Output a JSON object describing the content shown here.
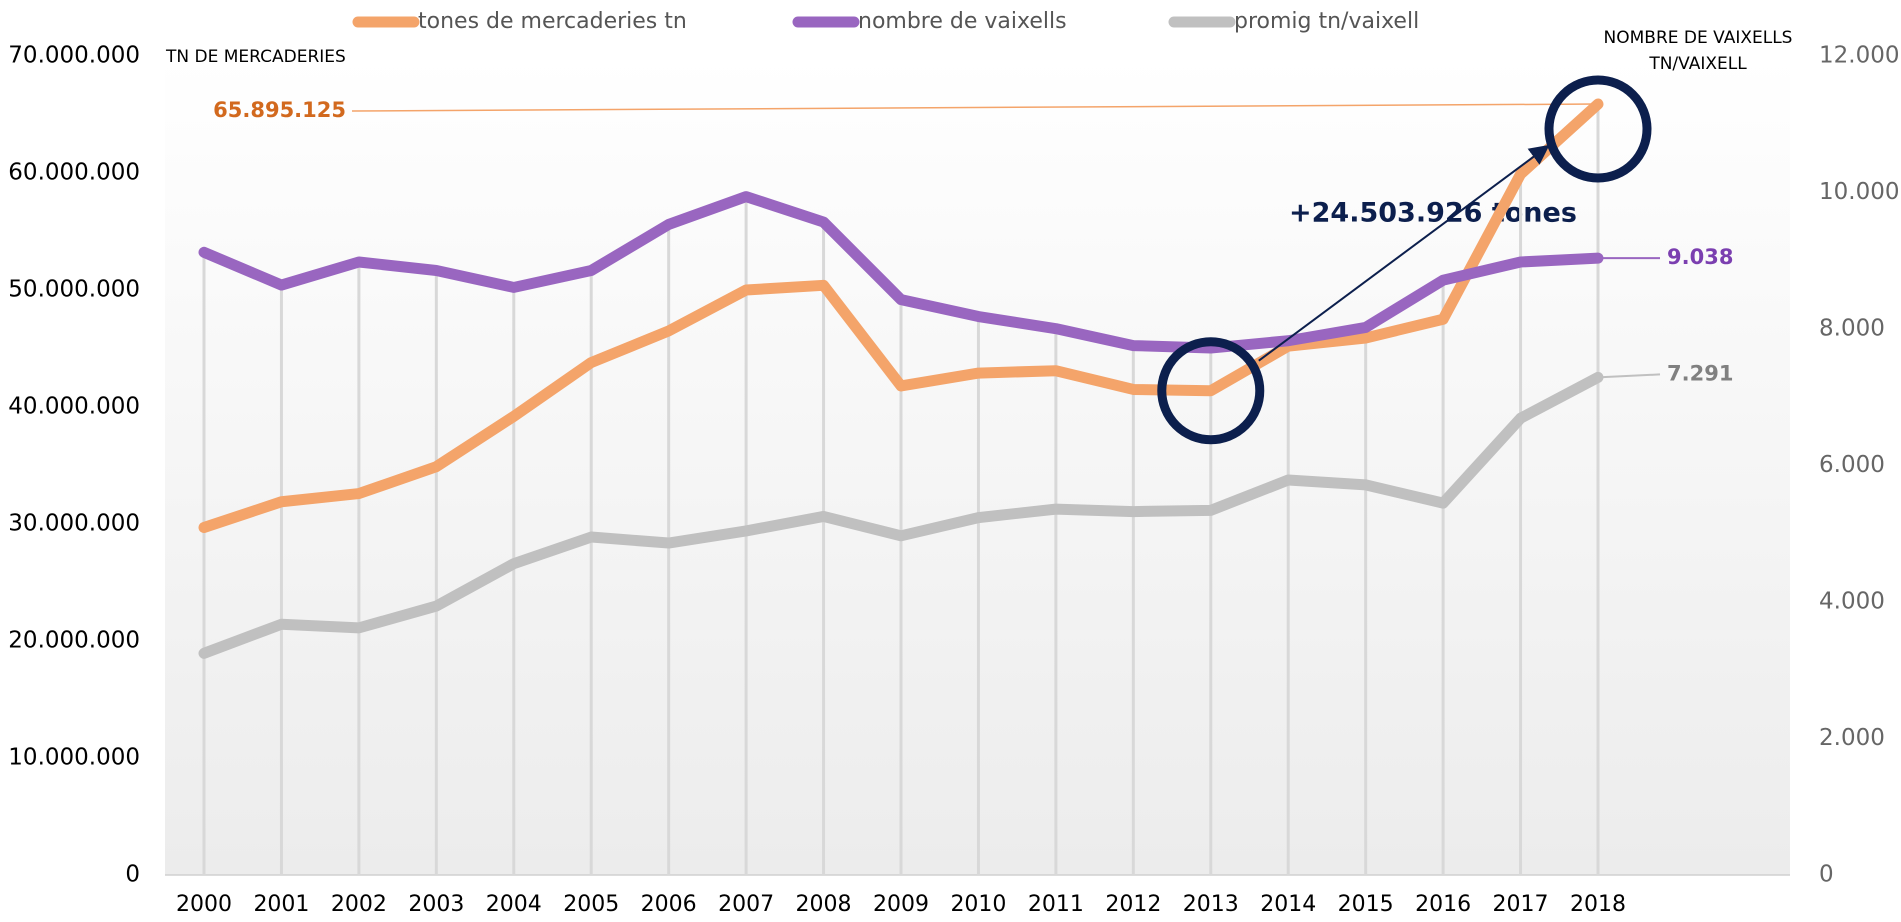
{
  "chart_data": {
    "type": "line",
    "legend": "top",
    "grid": false,
    "annotations": {
      "left_axis_title": "TN DE MERCADERIES",
      "right_axis_title_1": "NOMBRE DE VAIXELLS",
      "right_axis_title_2": "TN/VAIXELL",
      "growth": "+24.503.926 tones"
    },
    "categories": [
      "2000",
      "2001",
      "2002",
      "2003",
      "2004",
      "2005",
      "2006",
      "2007",
      "2008",
      "2009",
      "2010",
      "2011",
      "2012",
      "2013",
      "2014",
      "2015",
      "2016",
      "2017",
      "2018"
    ],
    "ylim": [
      0,
      70000000
    ],
    "yticks": [
      0,
      {
        "value": 10000000,
        "label": "10.000.000"
      },
      {
        "value": 20000000,
        "label": "20.000.000"
      },
      {
        "value": 30000000,
        "label": "30.000.000"
      },
      {
        "value": 40000000,
        "label": "40.000.000"
      },
      {
        "value": 50000000,
        "label": "50.000.000"
      },
      {
        "value": 60000000,
        "label": "60.000.000"
      },
      {
        "value": 70000000,
        "label": "70.000.000"
      }
    ],
    "y2lim": [
      0,
      12000
    ],
    "y2ticks": [
      0,
      {
        "value": 2000,
        "label": "2.000"
      },
      {
        "value": 4000,
        "label": "4.000"
      },
      {
        "value": 6000,
        "label": "6.000"
      },
      {
        "value": 8000,
        "label": "8.000"
      },
      {
        "value": 10000,
        "label": "10.000"
      },
      {
        "value": 12000,
        "label": "12.000"
      }
    ],
    "series": [
      {
        "name": "tones de mercaderies tn",
        "color": "#f4a46a",
        "label_color": "#d2691e",
        "values": [
          29700000,
          31900000,
          32600000,
          34900000,
          39200000,
          43800000,
          46500000,
          50000000,
          50400000,
          41800000,
          42900000,
          43100000,
          41500000,
          41391199,
          45200000,
          45900000,
          47500000,
          59900000,
          65895125
        ],
        "value_labels": [
          null,
          null,
          null,
          null,
          null,
          null,
          null,
          null,
          null,
          null,
          null,
          null,
          null,
          null,
          null,
          null,
          null,
          null,
          "65.895.125"
        ]
      },
      {
        "name": "nombre de vaixells",
        "color": "#9966c0",
        "label_color": "#7b3fb0",
        "axis": "y2",
        "values": [
          9124,
          8644,
          8982,
          8857,
          8609,
          8857,
          9532,
          9940,
          9567,
          8431,
          8183,
          8005,
          7757,
          7721,
          7828,
          8023,
          8715,
          8982,
          9038
        ],
        "value_labels": [
          null,
          null,
          null,
          null,
          null,
          null,
          null,
          null,
          null,
          null,
          null,
          null,
          null,
          null,
          null,
          null,
          null,
          null,
          "9.038"
        ]
      },
      {
        "name": "promig tn/vaixell",
        "color": "#c0c0c0",
        "label_color": "#808080",
        "axis": "y2",
        "values": [
          3248,
          3674,
          3621,
          3940,
          4562,
          4952,
          4864,
          5041,
          5254,
          4970,
          5236,
          5361,
          5325,
          5343,
          5787,
          5716,
          5449,
          6692,
          7291
        ],
        "value_labels": [
          null,
          null,
          null,
          null,
          null,
          null,
          null,
          null,
          null,
          null,
          null,
          null,
          null,
          null,
          null,
          null,
          null,
          null,
          "7.291"
        ]
      }
    ]
  }
}
